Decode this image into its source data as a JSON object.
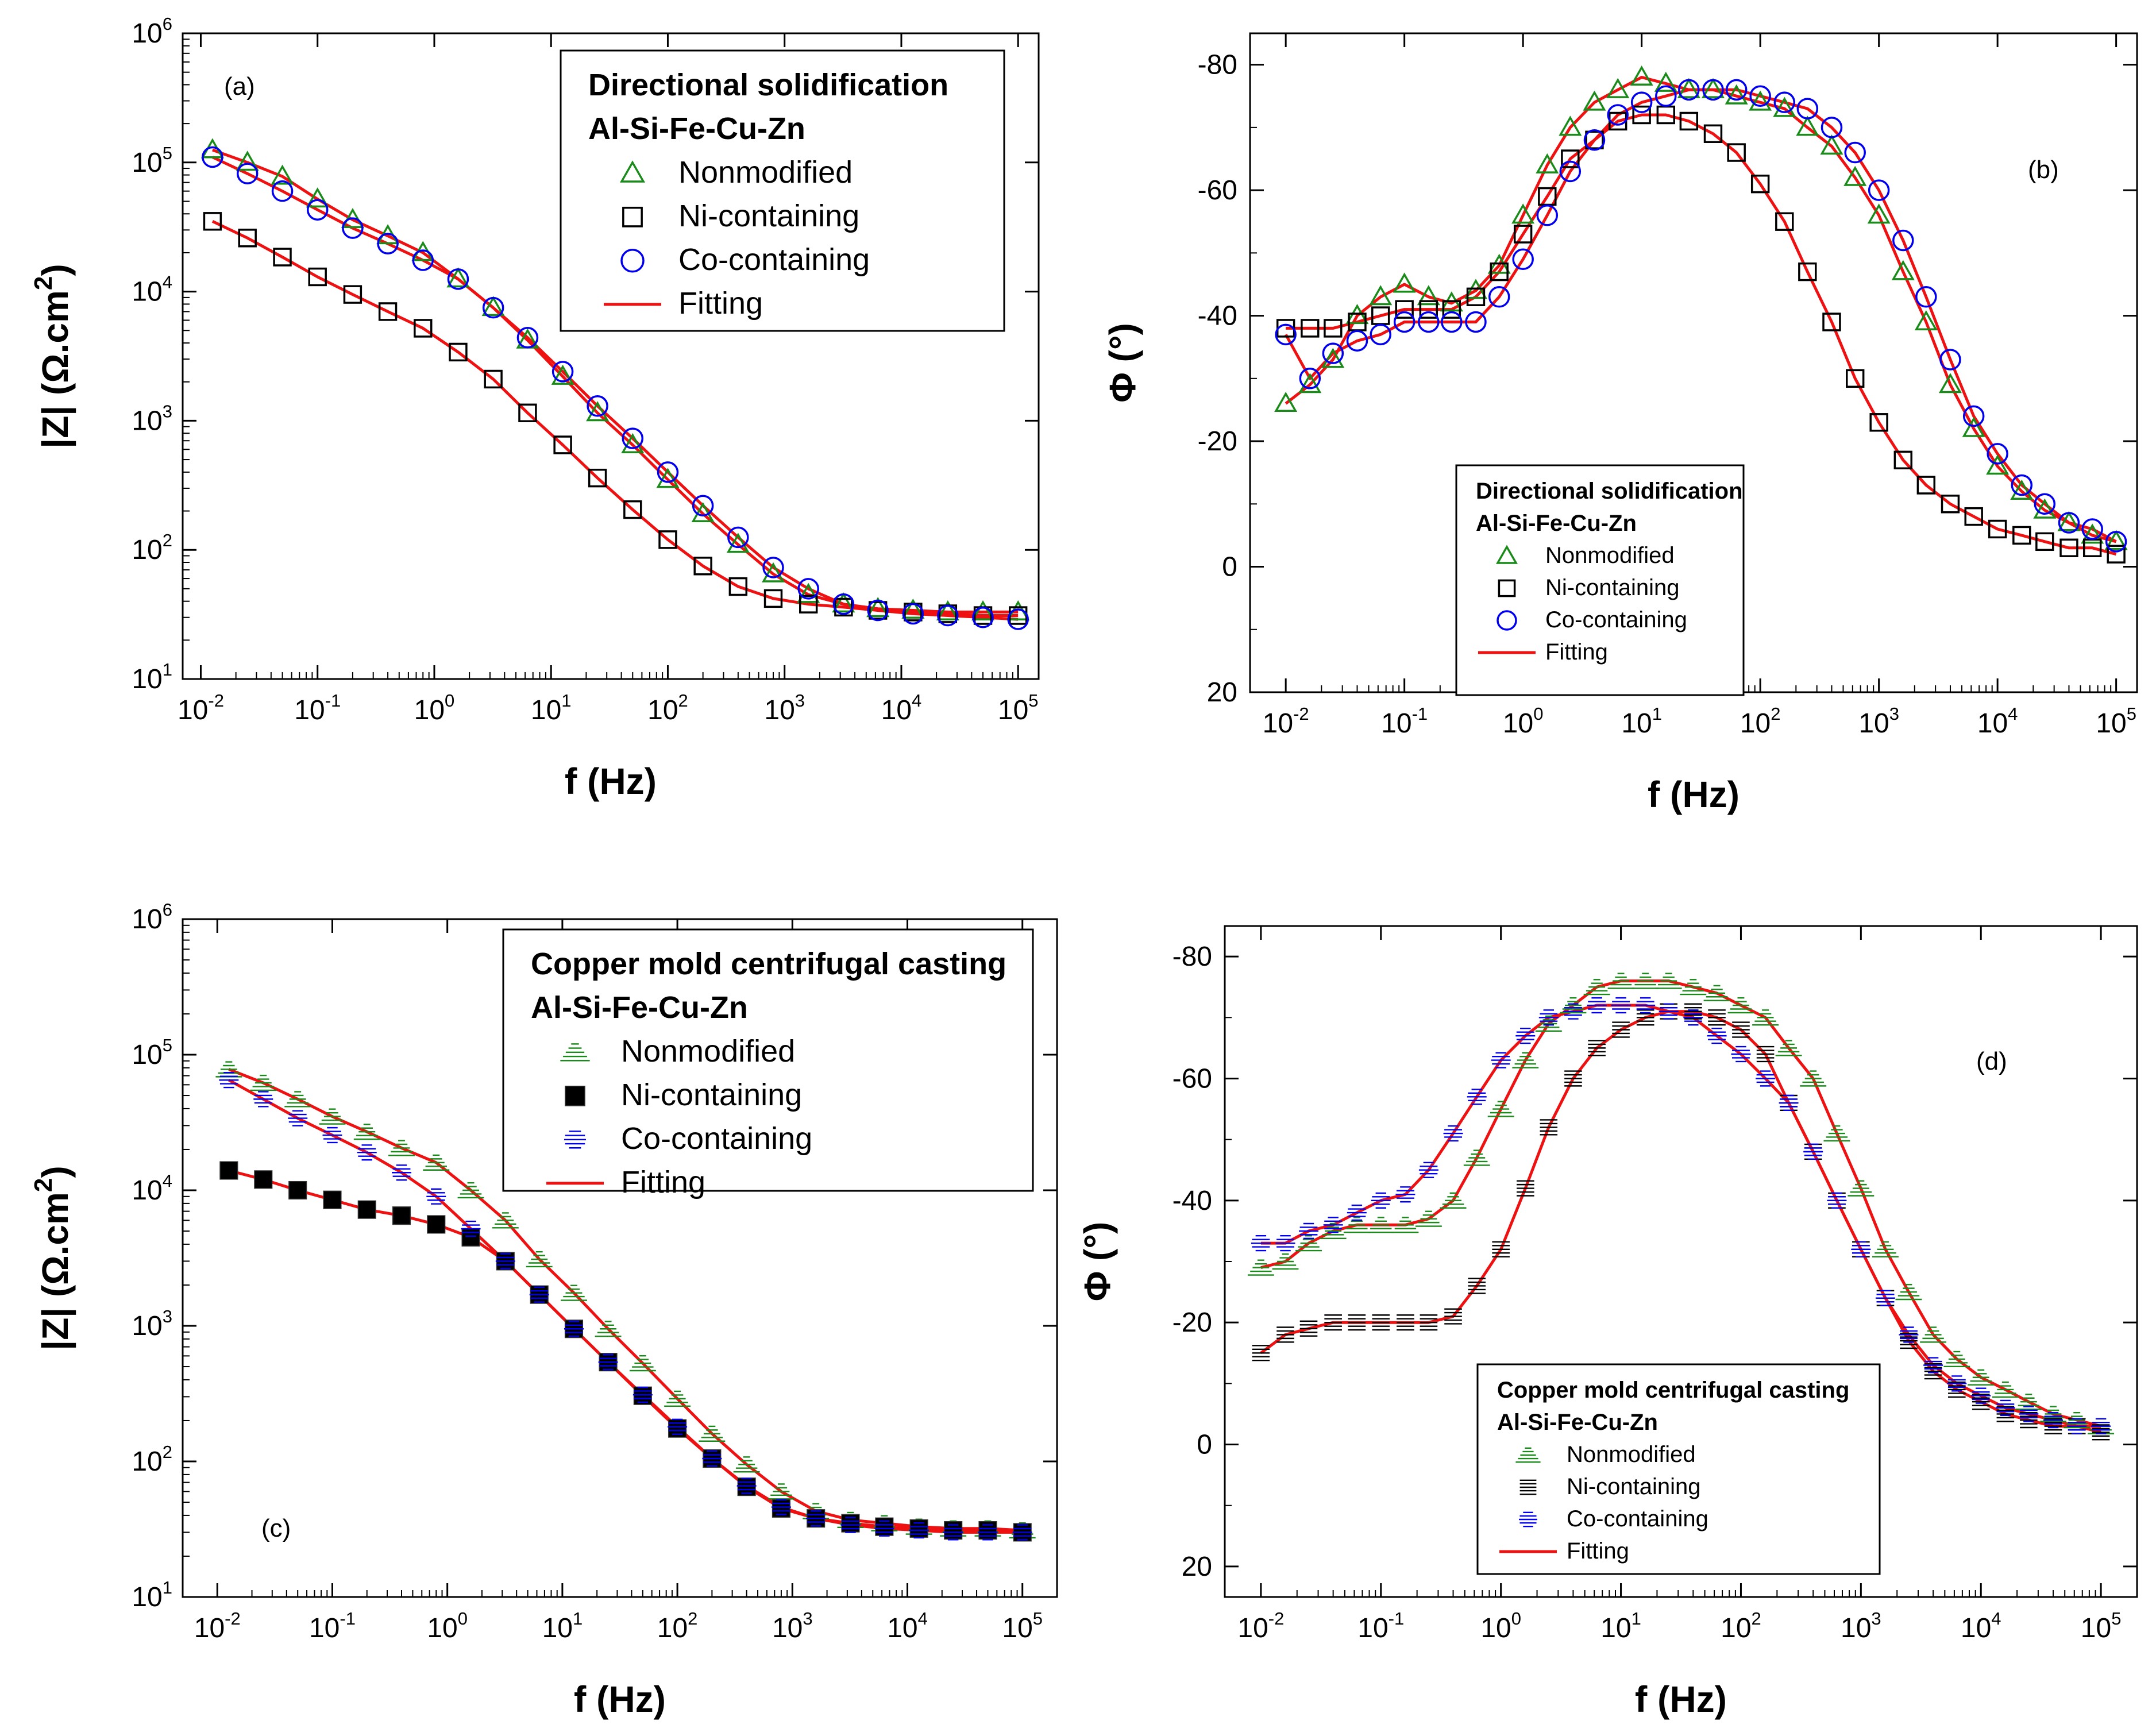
{
  "chart_data": [
    {
      "id": "a",
      "type": "scatter",
      "panel_label": "(a)",
      "xlabel": "f (Hz)",
      "ylabel": "|Z|  (Ω.cm",
      "ylabel_sup": "2",
      "ylabel_end": ")",
      "xscale": "log",
      "yscale": "log",
      "xlim": [
        0.007,
        150000
      ],
      "ylim": [
        10,
        1000000
      ],
      "x_ticks": [
        {
          "base": "10",
          "exp": "-2"
        },
        {
          "base": "10",
          "exp": "-1"
        },
        {
          "base": "10",
          "exp": "0"
        },
        {
          "base": "10",
          "exp": "1"
        },
        {
          "base": "10",
          "exp": "2"
        },
        {
          "base": "10",
          "exp": "3"
        },
        {
          "base": "10",
          "exp": "4"
        },
        {
          "base": "10",
          "exp": "5"
        }
      ],
      "y_ticks": [
        {
          "base": "10",
          "exp": "1"
        },
        {
          "base": "10",
          "exp": "2"
        },
        {
          "base": "10",
          "exp": "3"
        },
        {
          "base": "10",
          "exp": "4"
        },
        {
          "base": "10",
          "exp": "5"
        },
        {
          "base": "10",
          "exp": "6"
        }
      ],
      "legend": {
        "title_line1": "Directional solidification",
        "title_line2": "Al-Si-Fe-Cu-Zn",
        "placement": "top-right",
        "entries": [
          "Nonmodified",
          "Ni-containing",
          "Co-containing",
          "Fitting"
        ]
      },
      "x": [
        0.0126,
        0.0251,
        0.05,
        0.1,
        0.2,
        0.4,
        0.8,
        1.6,
        3.2,
        6.3,
        12.6,
        25,
        50,
        100,
        200,
        400,
        800,
        1600,
        3200,
        6300,
        12600,
        25000,
        50000,
        100000
      ],
      "series": [
        {
          "name": "Nonmodified",
          "marker": "triangle-open",
          "color": "#1a8a1a",
          "values": [
            125000,
            100000,
            78000,
            52000,
            36000,
            27000,
            20000,
            12500,
            7500,
            4200,
            2200,
            1150,
            650,
            350,
            190,
            110,
            65,
            45,
            38,
            35,
            34,
            33,
            33,
            33
          ]
        },
        {
          "name": "Ni-containing",
          "marker": "square-open",
          "color": "#000000",
          "values": [
            35000,
            26000,
            18500,
            13000,
            9500,
            7000,
            5200,
            3400,
            2100,
            1150,
            650,
            360,
            205,
            120,
            75,
            52,
            42,
            38,
            36,
            34,
            33,
            32,
            31,
            31
          ]
        },
        {
          "name": "Co-containing",
          "marker": "circle-open",
          "color": "#0000ee",
          "values": [
            110000,
            82000,
            60000,
            43000,
            31000,
            23500,
            17500,
            12500,
            7500,
            4400,
            2400,
            1300,
            730,
            400,
            220,
            125,
            73,
            50,
            38,
            34,
            32,
            31,
            30,
            29
          ]
        },
        {
          "name": "Fitting",
          "marker": "line",
          "color": "#ee1111",
          "fit_of": [
            "Nonmodified",
            "Ni-containing",
            "Co-containing"
          ]
        }
      ]
    },
    {
      "id": "b",
      "type": "scatter",
      "panel_label": "(b)",
      "xlabel": "f (Hz)",
      "ylabel": "Φ  (°)",
      "xscale": "log",
      "yscale": "linear",
      "xlim": [
        0.005,
        150000
      ],
      "ylim": [
        20,
        -85
      ],
      "x_ticks": [
        {
          "base": "10",
          "exp": "-2"
        },
        {
          "base": "10",
          "exp": "-1"
        },
        {
          "base": "10",
          "exp": "0"
        },
        {
          "base": "10",
          "exp": "1"
        },
        {
          "base": "10",
          "exp": "2"
        },
        {
          "base": "10",
          "exp": "3"
        },
        {
          "base": "10",
          "exp": "4"
        },
        {
          "base": "10",
          "exp": "5"
        }
      ],
      "y_ticks": [
        "-80",
        "-60",
        "-40",
        "-20",
        "0",
        "20"
      ],
      "y_tick_values": [
        -80,
        -60,
        -40,
        -20,
        0,
        20
      ],
      "legend": {
        "title_line1": "Directional solidification",
        "title_line2": "Al-Si-Fe-Cu-Zn",
        "placement": "bottom-center",
        "entries": [
          "Nonmodified",
          "Ni-containing",
          "Co-containing",
          "Fitting"
        ]
      },
      "series": [
        {
          "name": "Nonmodified",
          "marker": "triangle-open",
          "color": "#1a8a1a",
          "x": [
            0.01,
            0.016,
            0.025,
            0.04,
            0.063,
            0.1,
            0.16,
            0.25,
            0.4,
            0.63,
            1.0,
            1.6,
            2.5,
            4,
            6.3,
            10,
            16,
            25,
            40,
            63,
            100,
            160,
            250,
            400,
            630,
            1000,
            1600,
            2500,
            4000,
            6300,
            10000,
            16000,
            25000,
            40000,
            63000,
            100000
          ],
          "values": [
            -26,
            -29,
            -33,
            -40,
            -43,
            -45,
            -43,
            -42,
            -44,
            -48,
            -56,
            -64,
            -70,
            -74,
            -76,
            -78,
            -77,
            -76,
            -76,
            -75,
            -74,
            -73,
            -70,
            -67,
            -62,
            -56,
            -47,
            -39,
            -29,
            -22,
            -16,
            -12,
            -9,
            -7,
            -5,
            -4
          ]
        },
        {
          "name": "Ni-containing",
          "marker": "square-open",
          "color": "#000000",
          "x": [
            0.01,
            0.016,
            0.025,
            0.04,
            0.063,
            0.1,
            0.16,
            0.25,
            0.4,
            0.63,
            1.0,
            1.6,
            2.5,
            4,
            6.3,
            10,
            16,
            25,
            40,
            63,
            100,
            160,
            250,
            400,
            630,
            1000,
            1600,
            2500,
            4000,
            6300,
            10000,
            16000,
            25000,
            40000,
            63000,
            100000
          ],
          "values": [
            -38,
            -38,
            -38,
            -39,
            -40,
            -41,
            -41,
            -41,
            -43,
            -47,
            -53,
            -59,
            -65,
            -68,
            -71,
            -72,
            -72,
            -71,
            -69,
            -66,
            -61,
            -55,
            -47,
            -39,
            -30,
            -23,
            -17,
            -13,
            -10,
            -8,
            -6,
            -5,
            -4,
            -3,
            -3,
            -2
          ]
        },
        {
          "name": "Co-containing",
          "marker": "circle-open",
          "color": "#0000ee",
          "x": [
            0.01,
            0.016,
            0.025,
            0.04,
            0.063,
            0.1,
            0.16,
            0.25,
            0.4,
            0.63,
            1.0,
            1.6,
            2.5,
            4,
            6.3,
            10,
            16,
            25,
            40,
            63,
            100,
            160,
            250,
            400,
            630,
            1000,
            1600,
            2500,
            4000,
            6300,
            10000,
            16000,
            25000,
            40000,
            63000,
            100000
          ],
          "values": [
            -37,
            -30,
            -34,
            -36,
            -37,
            -39,
            -39,
            -39,
            -39,
            -43,
            -49,
            -56,
            -63,
            -68,
            -72,
            -74,
            -75,
            -76,
            -76,
            -76,
            -75,
            -74,
            -73,
            -70,
            -66,
            -60,
            -52,
            -43,
            -33,
            -24,
            -18,
            -13,
            -10,
            -7,
            -6,
            -4
          ]
        },
        {
          "name": "Fitting",
          "marker": "line",
          "color": "#ee1111",
          "fit_of": [
            "Nonmodified",
            "Ni-containing",
            "Co-containing"
          ]
        }
      ]
    },
    {
      "id": "c",
      "type": "scatter",
      "panel_label": "(c)",
      "xlabel": "f (Hz)",
      "ylabel": "|Z|  (Ω.cm",
      "ylabel_sup": "2",
      "ylabel_end": ")",
      "xscale": "log",
      "yscale": "log",
      "xlim": [
        0.005,
        200000
      ],
      "ylim": [
        10,
        1000000
      ],
      "x_ticks": [
        {
          "base": "10",
          "exp": "-2"
        },
        {
          "base": "10",
          "exp": "-1"
        },
        {
          "base": "10",
          "exp": "0"
        },
        {
          "base": "10",
          "exp": "1"
        },
        {
          "base": "10",
          "exp": "2"
        },
        {
          "base": "10",
          "exp": "3"
        },
        {
          "base": "10",
          "exp": "4"
        },
        {
          "base": "10",
          "exp": "5"
        }
      ],
      "y_ticks": [
        {
          "base": "10",
          "exp": "1"
        },
        {
          "base": "10",
          "exp": "2"
        },
        {
          "base": "10",
          "exp": "3"
        },
        {
          "base": "10",
          "exp": "4"
        },
        {
          "base": "10",
          "exp": "5"
        },
        {
          "base": "10",
          "exp": "6"
        }
      ],
      "legend": {
        "title_line1": "Copper mold centrifugal casting",
        "title_line2": "Al-Si-Fe-Cu-Zn",
        "placement": "top-right",
        "entries": [
          "Nonmodified",
          "Ni-containing",
          "Co-containing",
          "Fitting"
        ]
      },
      "x": [
        0.0126,
        0.0251,
        0.05,
        0.1,
        0.2,
        0.4,
        0.8,
        1.6,
        3.2,
        6.3,
        12.6,
        25,
        50,
        100,
        200,
        400,
        800,
        1600,
        3200,
        6300,
        12600,
        25000,
        50000,
        100000
      ],
      "series": [
        {
          "name": "Nonmodified",
          "marker": "hatched-triangle",
          "color": "#1a8a1a",
          "values": [
            78000,
            62000,
            47000,
            35000,
            27000,
            20500,
            16000,
            10000,
            6000,
            3100,
            1750,
            950,
            530,
            290,
            160,
            95,
            60,
            43,
            37,
            35,
            33,
            32,
            32,
            31
          ]
        },
        {
          "name": "Ni-containing",
          "marker": "square-filled",
          "color": "#000000",
          "values": [
            14000,
            12000,
            10000,
            8500,
            7200,
            6500,
            5600,
            4500,
            3000,
            1700,
            950,
            540,
            305,
            175,
            105,
            65,
            45,
            38,
            35,
            33,
            32,
            31,
            31,
            30
          ]
        },
        {
          "name": "Co-containing",
          "marker": "hatched-circle",
          "color": "#0000ee",
          "values": [
            65000,
            47000,
            34000,
            25500,
            19000,
            13500,
            9000,
            5200,
            3000,
            1700,
            950,
            540,
            310,
            180,
            105,
            66,
            46,
            38,
            34,
            32,
            31,
            30,
            30,
            30
          ]
        },
        {
          "name": "Fitting",
          "marker": "line",
          "color": "#ee1111",
          "fit_of": [
            "Nonmodified",
            "Ni-containing",
            "Co-containing"
          ]
        }
      ]
    },
    {
      "id": "d",
      "type": "scatter",
      "panel_label": "(d)",
      "xlabel": "f (Hz)",
      "ylabel": "Φ  (°)",
      "xscale": "log",
      "yscale": "linear",
      "xlim": [
        0.005,
        200000
      ],
      "ylim": [
        25,
        -85
      ],
      "x_ticks": [
        {
          "base": "10",
          "exp": "-2"
        },
        {
          "base": "10",
          "exp": "-1"
        },
        {
          "base": "10",
          "exp": "0"
        },
        {
          "base": "10",
          "exp": "1"
        },
        {
          "base": "10",
          "exp": "2"
        },
        {
          "base": "10",
          "exp": "3"
        },
        {
          "base": "10",
          "exp": "4"
        },
        {
          "base": "10",
          "exp": "5"
        }
      ],
      "y_ticks": [
        "-80",
        "-60",
        "-40",
        "-20",
        "0",
        "20"
      ],
      "y_tick_values": [
        -80,
        -60,
        -40,
        -20,
        0,
        20
      ],
      "legend": {
        "title_line1": "Copper mold centrifugal casting",
        "title_line2": "Al-Si-Fe-Cu-Zn",
        "placement": "bottom-center",
        "entries": [
          "Nonmodified",
          "Ni-containing",
          "Co-containing",
          "Fitting"
        ]
      },
      "x": [
        0.01,
        0.016,
        0.025,
        0.04,
        0.063,
        0.1,
        0.16,
        0.25,
        0.4,
        0.63,
        1.0,
        1.6,
        2.5,
        4,
        6.3,
        10,
        16,
        25,
        40,
        63,
        100,
        160,
        250,
        400,
        630,
        1000,
        1600,
        2500,
        4000,
        6300,
        10000,
        16000,
        25000,
        40000,
        63000,
        100000
      ],
      "series": [
        {
          "name": "Nonmodified",
          "marker": "hatched-triangle",
          "color": "#1a8a1a",
          "values": [
            -29,
            -30,
            -33,
            -35,
            -36,
            -36,
            -36,
            -37,
            -40,
            -47,
            -55,
            -63,
            -69,
            -72,
            -75,
            -76,
            -76,
            -76,
            -75,
            -74,
            -72,
            -70,
            -65,
            -60,
            -51,
            -42,
            -32,
            -25,
            -18,
            -14,
            -11,
            -9,
            -7,
            -5,
            -4,
            -3
          ]
        },
        {
          "name": "Ni-containing",
          "marker": "hatched-square",
          "color": "#000000",
          "values": [
            -15,
            -18,
            -19,
            -20,
            -20,
            -20,
            -20,
            -20,
            -21,
            -26,
            -32,
            -42,
            -52,
            -60,
            -65,
            -68,
            -70,
            -71,
            -71,
            -70,
            -68,
            -64,
            -56,
            -48,
            -40,
            -32,
            -24,
            -17,
            -12,
            -9,
            -7,
            -5,
            -4,
            -3,
            -3,
            -2
          ]
        },
        {
          "name": "Co-containing",
          "marker": "hatched-circle",
          "color": "#0000ee",
          "values": [
            -33,
            -33,
            -35,
            -36,
            -38,
            -40,
            -41,
            -45,
            -51,
            -57,
            -63,
            -67,
            -70,
            -71,
            -72,
            -72,
            -72,
            -71,
            -70,
            -67,
            -64,
            -60,
            -56,
            -48,
            -40,
            -32,
            -24,
            -18,
            -13,
            -10,
            -8,
            -6,
            -5,
            -4,
            -3,
            -3
          ]
        },
        {
          "name": "Fitting",
          "marker": "line",
          "color": "#ee1111",
          "fit_of": [
            "Nonmodified",
            "Ni-containing",
            "Co-containing"
          ]
        }
      ]
    }
  ]
}
